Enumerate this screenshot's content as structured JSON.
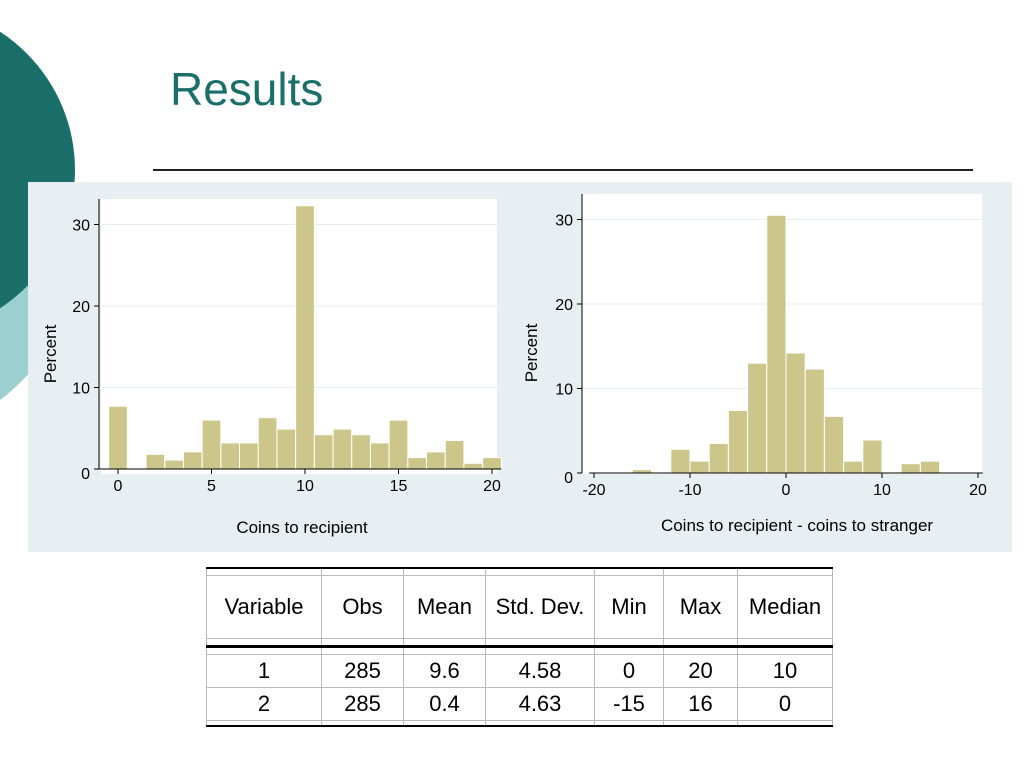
{
  "slide": {
    "title": "Results",
    "accent_color": "#1b6f6a",
    "accent_light": "#9ccfcf"
  },
  "chart_data": [
    {
      "type": "bar",
      "title": "",
      "xlabel": "Coins to recipient",
      "ylabel": "Percent",
      "xlim": [
        -1,
        20
      ],
      "ylim": [
        0,
        33
      ],
      "x_ticks": [
        0,
        5,
        10,
        15,
        20
      ],
      "y_ticks": [
        0,
        10,
        20,
        30
      ],
      "bin_width": 1,
      "bar_color": "#cdc68a",
      "bins": [
        {
          "x": 0,
          "value": 7.7
        },
        {
          "x": 1,
          "value": 0
        },
        {
          "x": 2,
          "value": 1.8
        },
        {
          "x": 3,
          "value": 1.1
        },
        {
          "x": 4,
          "value": 2.1
        },
        {
          "x": 5,
          "value": 6.0
        },
        {
          "x": 6,
          "value": 3.2
        },
        {
          "x": 7,
          "value": 3.2
        },
        {
          "x": 8,
          "value": 6.3
        },
        {
          "x": 9,
          "value": 4.9
        },
        {
          "x": 10,
          "value": 32.3
        },
        {
          "x": 11,
          "value": 4.2
        },
        {
          "x": 12,
          "value": 4.9
        },
        {
          "x": 13,
          "value": 4.2
        },
        {
          "x": 14,
          "value": 3.2
        },
        {
          "x": 15,
          "value": 6.0
        },
        {
          "x": 16,
          "value": 1.4
        },
        {
          "x": 17,
          "value": 2.1
        },
        {
          "x": 18,
          "value": 3.5
        },
        {
          "x": 19,
          "value": 0.7
        },
        {
          "x": 20,
          "value": 1.4
        }
      ]
    },
    {
      "type": "bar",
      "title": "",
      "xlabel": "Coins to recipient - coins to stranger",
      "ylabel": "Percent",
      "xlim": [
        -20,
        20
      ],
      "ylim": [
        0,
        32
      ],
      "x_ticks": [
        -20,
        -10,
        0,
        10,
        20
      ],
      "y_ticks": [
        0,
        10,
        20,
        30
      ],
      "bin_width": 2,
      "bar_color": "#cdc68a",
      "bins": [
        {
          "x": -15,
          "value": 0.4
        },
        {
          "x": -11,
          "value": 2.8
        },
        {
          "x": -9,
          "value": 1.4
        },
        {
          "x": -7,
          "value": 3.5
        },
        {
          "x": -5,
          "value": 7.4
        },
        {
          "x": -3,
          "value": 13.0
        },
        {
          "x": -1,
          "value": 30.5
        },
        {
          "x": 1,
          "value": 14.2
        },
        {
          "x": 3,
          "value": 12.3
        },
        {
          "x": 5,
          "value": 6.7
        },
        {
          "x": 7,
          "value": 1.4
        },
        {
          "x": 9,
          "value": 3.9
        },
        {
          "x": 13,
          "value": 1.1
        },
        {
          "x": 15,
          "value": 1.4
        }
      ]
    }
  ],
  "summary_table": {
    "headers": [
      "Variable",
      "Obs",
      "Mean",
      "Std. Dev.",
      "Min",
      "Max",
      "Median"
    ],
    "rows": [
      [
        "1",
        "285",
        "9.6",
        "4.58",
        "0",
        "20",
        "10"
      ],
      [
        "2",
        "285",
        "0.4",
        "4.63",
        "-15",
        "16",
        "0"
      ]
    ]
  }
}
